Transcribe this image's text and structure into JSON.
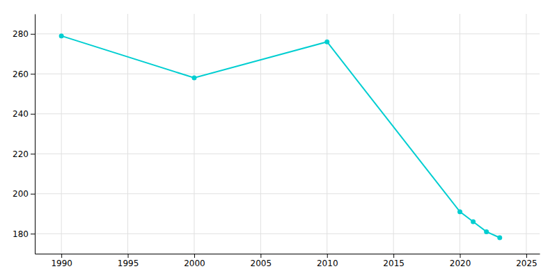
{
  "chart_data": {
    "type": "line",
    "x": [
      1990,
      2000,
      2010,
      2020,
      2021,
      2022,
      2023
    ],
    "values": [
      279,
      258,
      276,
      191,
      186,
      181,
      178
    ],
    "color": "#00CED1",
    "marker": "circle",
    "xlim": [
      1988,
      2026
    ],
    "ylim": [
      170,
      290
    ],
    "xticks": [
      1990,
      1995,
      2000,
      2005,
      2010,
      2015,
      2020,
      2025
    ],
    "yticks": [
      180,
      200,
      220,
      240,
      260,
      280
    ],
    "grid": true
  }
}
